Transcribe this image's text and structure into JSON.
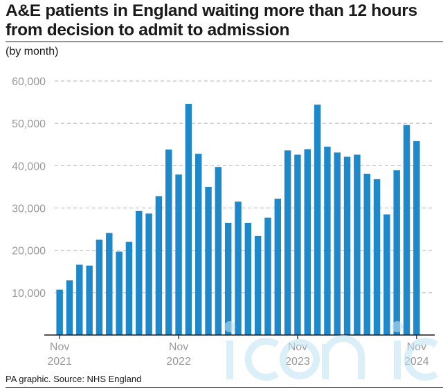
{
  "header": {
    "title": "A&E patients in England waiting more than 12 hours from decision to admit to admission",
    "subtitle": "(by month)"
  },
  "footer": {
    "source": "PA graphic. Source: NHS England"
  },
  "colors": {
    "bar": "#1e88c8",
    "grid": "#b5b5b5",
    "tick_text": "#9a9a9a",
    "axis": "#1a1a1a"
  },
  "chart_data": {
    "type": "bar",
    "title": "A&E patients in England waiting more than 12 hours from decision to admit to admission",
    "subtitle": "(by month)",
    "xlabel": "",
    "ylabel": "",
    "ylim": [
      0,
      60000
    ],
    "yticks": [
      "10,000",
      "20,000",
      "30,000",
      "40,000",
      "50,000",
      "60,000"
    ],
    "ytick_values": [
      10000,
      20000,
      30000,
      40000,
      50000,
      60000
    ],
    "grid": true,
    "x_tick_labels": [
      {
        "line1": "Nov",
        "line2": "2021",
        "category_index": 0
      },
      {
        "line1": "Nov",
        "line2": "2022",
        "category_index": 12
      },
      {
        "line1": "Nov",
        "line2": "2023",
        "category_index": 24
      },
      {
        "line1": "Nov",
        "line2": "2024",
        "category_index": 36
      }
    ],
    "categories": [
      "Nov 2021",
      "Dec 2021",
      "Jan 2022",
      "Feb 2022",
      "Mar 2022",
      "Apr 2022",
      "May 2022",
      "Jun 2022",
      "Jul 2022",
      "Aug 2022",
      "Sep 2022",
      "Oct 2022",
      "Nov 2022",
      "Dec 2022",
      "Jan 2023",
      "Feb 2023",
      "Mar 2023",
      "Apr 2023",
      "May 2023",
      "Jun 2023",
      "Jul 2023",
      "Aug 2023",
      "Sep 2023",
      "Oct 2023",
      "Nov 2023",
      "Dec 2023",
      "Jan 2024",
      "Feb 2024",
      "Mar 2024",
      "Apr 2024",
      "May 2024",
      "Jun 2024",
      "Jul 2024",
      "Aug 2024",
      "Sep 2024",
      "Oct 2024",
      "Nov 2024"
    ],
    "values": [
      10700,
      12900,
      16600,
      16400,
      22500,
      24100,
      19700,
      22000,
      29300,
      28700,
      32800,
      43800,
      37900,
      54600,
      42800,
      35000,
      39700,
      26500,
      31500,
      26500,
      23400,
      27700,
      32200,
      43600,
      42600,
      43900,
      54400,
      44500,
      43100,
      42100,
      42600,
      38100,
      36800,
      28500,
      38900,
      49600,
      45800
    ]
  },
  "watermark": {
    "text": "iconic"
  }
}
